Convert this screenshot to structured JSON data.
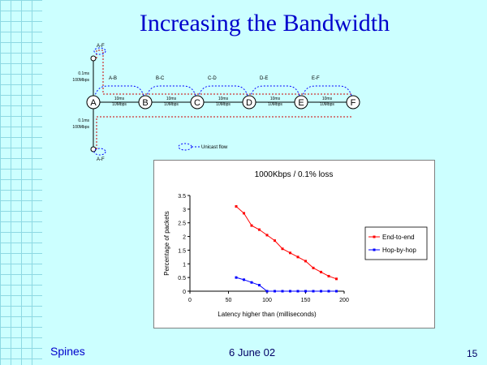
{
  "slide": {
    "title": "Increasing the Bandwidth",
    "footer_left": "Spines",
    "footer_center": "6 June 02",
    "page_number": "15"
  },
  "diagram": {
    "nodes": [
      "A",
      "B",
      "C",
      "D",
      "E",
      "F"
    ],
    "vertical_link_label_top": [
      "0.1ms",
      "100Mbps"
    ],
    "vertical_link_label_bottom": [
      "0.1ms",
      "100Mbps"
    ],
    "top_node_label": "A-F",
    "bottom_node_label": "A-F",
    "flow_labels": [
      "A-B",
      "B-C",
      "C-D",
      "D-E",
      "E-F"
    ],
    "link_labels": [
      [
        "10ms",
        "10Mbps"
      ],
      [
        "10ms",
        "10Mbps"
      ],
      [
        "10ms",
        "10Mbps"
      ],
      [
        "10ms",
        "10Mbps"
      ],
      [
        "10ms",
        "10Mbps"
      ]
    ],
    "legend_label": "Unicast flow",
    "colors": {
      "flow": "#0000ff",
      "path": "#cc0000",
      "link": "#000000"
    }
  },
  "chart_data": {
    "type": "line",
    "title": "1000Kbps / 0.1% loss",
    "xlabel": "Latency higher than (milliseconds)",
    "ylabel": "Percentage of packets",
    "xlim": [
      0,
      200
    ],
    "ylim": [
      0,
      3.5
    ],
    "x_ticks": [
      0,
      50,
      100,
      150,
      200
    ],
    "y_ticks": [
      0,
      0.5,
      1,
      1.5,
      2,
      2.5,
      3,
      3.5
    ],
    "legend_position": "right",
    "series": [
      {
        "name": "End-to-end",
        "color": "#ff0000",
        "x": [
          60,
          70,
          80,
          90,
          100,
          110,
          120,
          130,
          140,
          150,
          160,
          170,
          180,
          190
        ],
        "y": [
          3.1,
          2.85,
          2.4,
          2.25,
          2.05,
          1.85,
          1.55,
          1.4,
          1.25,
          1.1,
          0.85,
          0.7,
          0.55,
          0.45
        ]
      },
      {
        "name": "Hop-by-hop",
        "color": "#0000ff",
        "x": [
          60,
          70,
          80,
          90,
          100,
          110,
          120,
          130,
          140,
          150,
          160,
          170,
          180,
          190
        ],
        "y": [
          0.5,
          0.42,
          0.32,
          0.22,
          0.0,
          0.0,
          0.0,
          0.0,
          0.0,
          0.0,
          0.0,
          0.0,
          0.0,
          0.0
        ]
      }
    ]
  }
}
